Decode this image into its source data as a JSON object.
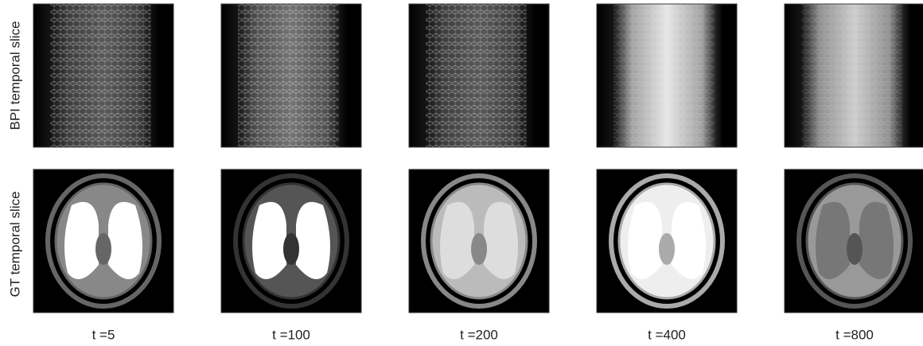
{
  "rows": [
    {
      "label": "BPI temporal slice"
    },
    {
      "label": "GT temporal slice"
    }
  ],
  "columns": [
    "t =5",
    "t =100",
    "t =200",
    "t =400",
    "t =800"
  ]
}
